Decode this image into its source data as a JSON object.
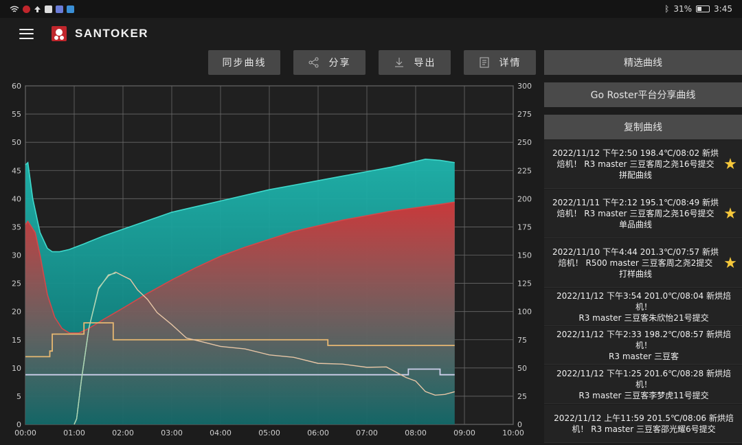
{
  "status_bar": {
    "battery": "31%",
    "time": "3:45",
    "battery_level": 0.31,
    "icons": [
      "wifi-icon",
      "notification-icon",
      "upload-icon",
      "app-icon",
      "app-icon-2",
      "app-icon-3",
      "bluetooth-icon",
      "battery-icon"
    ]
  },
  "app": {
    "brand": "SANTOKER"
  },
  "toolbar": {
    "sync_label": "同步曲线",
    "share_label": "分享",
    "export_label": "导出",
    "detail_label": "详情",
    "share_icon": "share-icon",
    "export_icon": "download-icon",
    "detail_icon": "document-icon"
  },
  "sidebar": {
    "buttons": {
      "featured": "精选曲线",
      "go_roster": "Go Roster平台分享曲线",
      "copy": "复制曲线"
    },
    "items": [
      {
        "line1": "2022/11/12 下午2:50 198.4℃/08:02 新烘",
        "line2": "焙机！ R3 master 三豆客周之尧16号提交",
        "line3": "拼配曲线",
        "starred": true
      },
      {
        "line1": "2022/11/11 下午2:12 195.1℃/08:49 新烘",
        "line2": "焙机！ R3 master 三豆客周之尧16号提交",
        "line3": "单品曲线",
        "starred": true
      },
      {
        "line1": "2022/11/10 下午4:44 201.3℃/07:57 新烘",
        "line2": "焙机！ R500 master 三豆客周之尧2提交",
        "line3": "打样曲线",
        "starred": true
      },
      {
        "line1": "2022/11/12 下午3:54 201.0℃/08:04 新烘焙机！",
        "line2": "R3 master 三豆客朱欣怡21号提交",
        "line3": "",
        "starred": false
      },
      {
        "line1": "2022/11/12 下午2:33 198.2℃/08:57 新烘焙机！",
        "line2": "R3 master 三豆客",
        "line3": "",
        "starred": false
      },
      {
        "line1": "2022/11/12 下午1:25 201.6℃/08:28 新烘焙机！",
        "line2": "R3 master 三豆客李梦虎11号提交",
        "line3": "",
        "starred": false
      },
      {
        "line1": "2022/11/12 上午11:59 201.5℃/08:06 新烘焙",
        "line2": "机！ R3 master 三豆客邵光耀6号提交",
        "line3": "",
        "starred": false
      }
    ]
  },
  "chart_data": {
    "type": "line",
    "x_ticks": [
      "00:00",
      "01:00",
      "02:00",
      "03:00",
      "04:00",
      "05:00",
      "06:00",
      "07:00",
      "08:00",
      "09:00",
      "10:00"
    ],
    "xlim": [
      0,
      10
    ],
    "y_left_ticks": [
      "0",
      "5",
      "10",
      "15",
      "20",
      "25",
      "30",
      "35",
      "40",
      "45",
      "50",
      "55",
      "60"
    ],
    "y_left_lim": [
      0,
      60
    ],
    "y_right_ticks": [
      "0",
      "25",
      "50",
      "75",
      "100",
      "125",
      "150",
      "175",
      "200",
      "225",
      "250",
      "275",
      "300"
    ],
    "y_right_lim": [
      0,
      300
    ],
    "grid": true,
    "colors": {
      "env_temp": "#1ebfb3",
      "bean_temp": "#c8383a",
      "ror": "#e8c6a6",
      "fire": "#e8b872",
      "airflow": "#cfd0ec",
      "ror_early": "#a8d8b6"
    },
    "series": [
      {
        "key": "env_temp",
        "axis": "right",
        "area": true,
        "x": [
          0,
          0.05,
          0.15,
          0.3,
          0.45,
          0.55,
          0.7,
          0.9,
          1.2,
          1.6,
          2,
          2.4,
          2.8,
          3,
          3.5,
          4,
          4.5,
          5,
          5.5,
          6,
          6.5,
          7,
          7.5,
          7.9,
          8.2,
          8.5,
          8.8
        ],
        "y": [
          230,
          232,
          200,
          170,
          156,
          153,
          153,
          155,
          160,
          167,
          173,
          179,
          185,
          188,
          193,
          198,
          203,
          208,
          212,
          216,
          220,
          224,
          228,
          232,
          235,
          234,
          232
        ]
      },
      {
        "key": "bean_temp",
        "axis": "right",
        "area": true,
        "x": [
          0,
          0.05,
          0.2,
          0.3,
          0.45,
          0.6,
          0.75,
          0.9,
          1.1,
          1.3,
          1.6,
          2,
          2.5,
          3,
          3.5,
          4,
          4.5,
          5,
          5.5,
          6,
          6.5,
          7,
          7.5,
          8,
          8.5,
          8.8
        ],
        "y": [
          177,
          180,
          170,
          150,
          115,
          95,
          85,
          81,
          81,
          85,
          93,
          103,
          116,
          128,
          139,
          149,
          157,
          164,
          171,
          176,
          181,
          185,
          189,
          192,
          195,
          197
        ]
      },
      {
        "key": "ror",
        "axis": "left",
        "area": false,
        "x": [
          1.0,
          1.05,
          1.15,
          1.3,
          1.5,
          1.7,
          1.85,
          2.0,
          2.15,
          2.3,
          2.5,
          2.7,
          3.0,
          3.3,
          3.6,
          4.0,
          4.5,
          5.0,
          5.5,
          6.0,
          6.5,
          7.0,
          7.4,
          7.8,
          8.0,
          8.2,
          8.4,
          8.6,
          8.8
        ],
        "y": [
          0,
          1,
          8,
          17,
          24,
          26.5,
          26.8,
          26.5,
          25.5,
          24,
          22,
          20,
          17.5,
          15.5,
          14.5,
          14,
          13.2,
          12.5,
          11.7,
          11,
          10.5,
          10.3,
          10,
          8.5,
          7.5,
          6,
          5,
          5.5,
          5.6
        ]
      },
      {
        "key": "fire",
        "axis": "left",
        "area": false,
        "step": true,
        "x": [
          0,
          0.1,
          0.5,
          0.55,
          1.15,
          1.2,
          1.75,
          1.8,
          6.15,
          6.2,
          8.8
        ],
        "y": [
          12,
          12,
          13,
          16,
          16,
          18,
          18,
          15,
          15,
          14,
          14
        ]
      },
      {
        "key": "airflow",
        "axis": "left",
        "area": false,
        "step": true,
        "x": [
          0,
          7.8,
          7.85,
          8.45,
          8.5,
          8.8
        ],
        "y": [
          8.8,
          8.8,
          9.8,
          9.8,
          8.8,
          8.8
        ]
      }
    ]
  }
}
